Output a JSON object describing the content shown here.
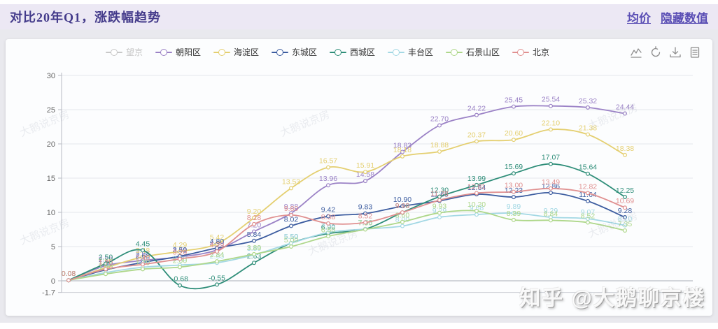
{
  "header": {
    "title": "对比20年Q1，涨跌幅趋势",
    "links": [
      {
        "label": "均价"
      },
      {
        "label": "隐藏数值"
      }
    ]
  },
  "toolbar": {
    "icons": [
      "toggle-line-chart",
      "restore",
      "save-as-image",
      "data-view"
    ]
  },
  "legend": {
    "items": [
      {
        "key": "wangjing",
        "label": "望京",
        "color": "#c8c8c8",
        "disabled": true
      },
      {
        "key": "chaoyang",
        "label": "朝阳区",
        "color": "#9b82c6",
        "disabled": false
      },
      {
        "key": "haidian",
        "label": "海淀区",
        "color": "#e4cf70",
        "disabled": false
      },
      {
        "key": "dongcheng",
        "label": "东城区",
        "color": "#3d5da0",
        "disabled": false
      },
      {
        "key": "xicheng",
        "label": "西城区",
        "color": "#2f8e79",
        "disabled": false
      },
      {
        "key": "fengtai",
        "label": "丰台区",
        "color": "#a3d8e4",
        "disabled": false
      },
      {
        "key": "shijingshan",
        "label": "石景山区",
        "color": "#aed78a",
        "disabled": false
      },
      {
        "key": "beijing",
        "label": "北京",
        "color": "#e09090",
        "disabled": false
      }
    ]
  },
  "chart_data": {
    "type": "line",
    "title": "对比20年Q1，涨跌幅趋势",
    "xlabel": "",
    "ylabel": "",
    "ylim": [
      -1.7,
      30
    ],
    "yticks": [
      30,
      25,
      20,
      15,
      10,
      5,
      0,
      -1.7
    ],
    "grid": true,
    "legend_position": "top",
    "x_points": 16,
    "series": [
      {
        "name": "朝阳区",
        "color": "#9b82c6",
        "values": [
          0.08,
          2.2,
          2.97,
          3.48,
          4.5,
          7.2,
          9.88,
          13.96,
          14.58,
          18.83,
          22.7,
          24.22,
          25.45,
          25.54,
          25.32,
          24.44
        ]
      },
      {
        "name": "海淀区",
        "color": "#e4cf70",
        "values": [
          0.08,
          1.9,
          3.48,
          4.29,
          5.42,
          9.2,
          13.53,
          16.57,
          15.91,
          18.18,
          18.88,
          20.37,
          20.6,
          22.1,
          21.38,
          18.38
        ]
      },
      {
        "name": "东城区",
        "color": "#3d5da0",
        "values": [
          0.08,
          1.6,
          2.68,
          3.59,
          4.8,
          5.84,
          8.02,
          9.42,
          9.83,
          10.9,
          11.68,
          12.64,
          12.23,
          12.86,
          11.64,
          9.28
        ]
      },
      {
        "name": "西城区",
        "color": "#2f8e79",
        "values": [
          0.08,
          2.5,
          4.45,
          -0.68,
          -0.55,
          2.63,
          5.5,
          6.9,
          7.56,
          9.98,
          12.3,
          13.99,
          15.69,
          17.07,
          15.64,
          12.25
        ]
      },
      {
        "name": "丰台区",
        "color": "#a3d8e4",
        "values": [
          0.08,
          1.2,
          1.98,
          2.3,
          2.63,
          3.8,
          5.5,
          7.06,
          7.56,
          8.0,
          9.29,
          9.68,
          9.89,
          9.29,
          9.07,
          8.1
        ]
      },
      {
        "name": "石景山区",
        "color": "#aed78a",
        "values": [
          0.08,
          1.0,
          1.7,
          2.0,
          2.84,
          3.89,
          5.0,
          6.5,
          7.5,
          8.6,
          9.93,
          10.2,
          8.89,
          8.84,
          8.52,
          7.35
        ]
      },
      {
        "name": "北京",
        "color": "#e09090",
        "values": [
          0.08,
          1.7,
          2.4,
          3.2,
          4.29,
          8.28,
          9.6,
          8.38,
          8.52,
          9.99,
          11.78,
          12.81,
          13.0,
          13.49,
          12.82,
          10.69
        ]
      }
    ]
  },
  "watermarks": {
    "diagonal_text": "大鹅说京房",
    "badge_text": "知乎 @大鹅聊京楼"
  }
}
